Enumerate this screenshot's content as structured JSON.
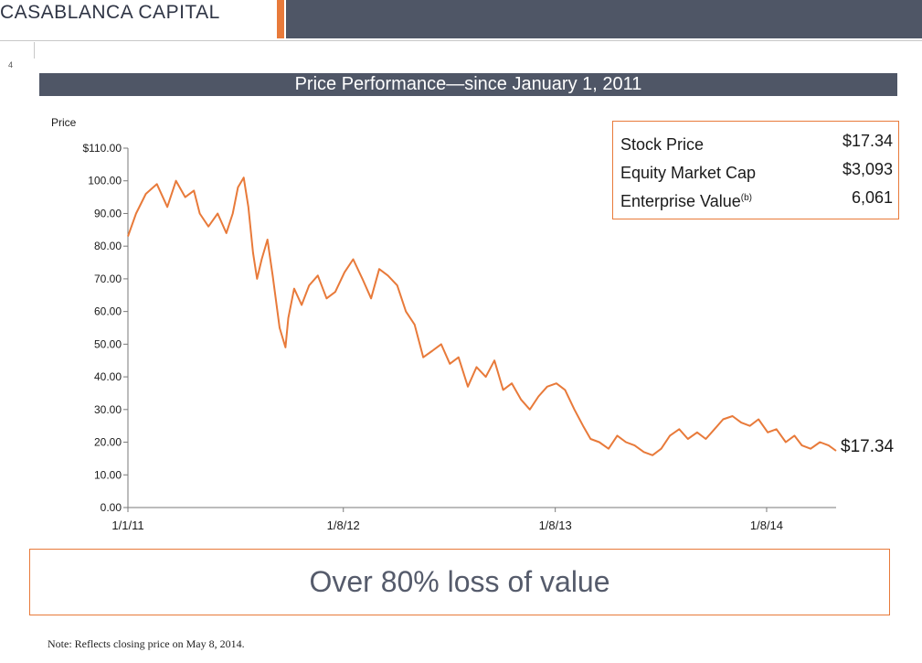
{
  "header": {
    "brand": "CASABLANCA CAPITAL",
    "page_number": "4"
  },
  "title": "Price Performance—since January 1, 2011",
  "stats": [
    {
      "label": "Stock Price",
      "note": "",
      "value": "$17.34"
    },
    {
      "label": "Equity Market Cap",
      "note": "",
      "value": "$3,093"
    },
    {
      "label": "Enterprise Value",
      "note": "(b)",
      "value": "6,061"
    }
  ],
  "callout": "Over 80% loss of value",
  "footnote": "Note: Reflects closing price on May 8, 2014.",
  "colors": {
    "line": "#e87a3a",
    "accent": "#e87a3a",
    "header_bar": "#4f5666"
  },
  "chart_data": {
    "type": "line",
    "title": "Price Performance—since January 1, 2011",
    "ylabel": "Price",
    "xlabel": "",
    "ylim": [
      0,
      110
    ],
    "y_ticks": [
      "$110.00",
      "100.00",
      "90.00",
      "80.00",
      "70.00",
      "60.00",
      "50.00",
      "40.00",
      "30.00",
      "20.00",
      "10.00",
      "0.00"
    ],
    "x_ticks": [
      {
        "label": "1/1/11",
        "date": "2011-01-01"
      },
      {
        "label": "1/8/12",
        "date": "2012-01-08"
      },
      {
        "label": "1/8/13",
        "date": "2013-01-08"
      },
      {
        "label": "1/8/14",
        "date": "2014-01-08"
      }
    ],
    "x_range": [
      "2011-01-01",
      "2014-05-08"
    ],
    "end_label": "$17.34",
    "series": [
      {
        "name": "",
        "x": [
          "2011-01-01",
          "2011-01-15",
          "2011-02-01",
          "2011-02-20",
          "2011-03-10",
          "2011-03-25",
          "2011-04-10",
          "2011-04-25",
          "2011-05-05",
          "2011-05-20",
          "2011-06-05",
          "2011-06-20",
          "2011-07-01",
          "2011-07-10",
          "2011-07-20",
          "2011-07-28",
          "2011-08-05",
          "2011-08-12",
          "2011-08-20",
          "2011-08-30",
          "2011-09-08",
          "2011-09-20",
          "2011-09-30",
          "2011-10-05",
          "2011-10-15",
          "2011-10-28",
          "2011-11-10",
          "2011-11-25",
          "2011-12-10",
          "2011-12-25",
          "2012-01-10",
          "2012-01-25",
          "2012-02-10",
          "2012-02-25",
          "2012-03-10",
          "2012-03-25",
          "2012-04-10",
          "2012-04-25",
          "2012-05-10",
          "2012-05-25",
          "2012-06-10",
          "2012-06-25",
          "2012-07-10",
          "2012-07-25",
          "2012-08-10",
          "2012-08-25",
          "2012-09-10",
          "2012-09-25",
          "2012-10-10",
          "2012-10-25",
          "2012-11-10",
          "2012-11-25",
          "2012-12-10",
          "2012-12-25",
          "2013-01-10",
          "2013-01-25",
          "2013-02-10",
          "2013-02-25",
          "2013-03-10",
          "2013-03-25",
          "2013-04-10",
          "2013-04-25",
          "2013-05-10",
          "2013-05-25",
          "2013-06-10",
          "2013-06-25",
          "2013-07-10",
          "2013-07-25",
          "2013-08-10",
          "2013-08-25",
          "2013-09-10",
          "2013-09-25",
          "2013-10-10",
          "2013-10-25",
          "2013-11-10",
          "2013-11-25",
          "2013-12-10",
          "2013-12-25",
          "2014-01-10",
          "2014-01-25",
          "2014-02-10",
          "2014-02-25",
          "2014-03-10",
          "2014-03-25",
          "2014-04-10",
          "2014-04-25",
          "2014-05-08"
        ],
        "y": [
          83,
          90,
          96,
          99,
          92,
          100,
          95,
          97,
          90,
          86,
          90,
          84,
          90,
          98,
          101,
          92,
          78,
          70,
          76,
          82,
          71,
          55,
          49,
          58,
          67,
          62,
          68,
          71,
          64,
          66,
          72,
          76,
          70,
          64,
          73,
          71,
          68,
          60,
          56,
          46,
          48,
          50,
          44,
          46,
          37,
          43,
          40,
          45,
          36,
          38,
          33,
          30,
          34,
          37,
          38,
          36,
          30,
          25,
          21,
          20,
          18,
          22,
          20,
          19,
          17,
          16,
          18,
          22,
          24,
          21,
          23,
          21,
          24,
          27,
          28,
          26,
          25,
          27,
          23,
          24,
          20,
          22,
          19,
          18,
          20,
          19,
          17.34
        ]
      }
    ]
  }
}
